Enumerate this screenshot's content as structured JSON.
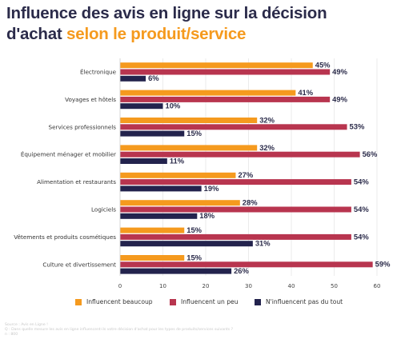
{
  "title": {
    "part1": "Influence des avis en ligne sur la décision",
    "part2": "d'achat ",
    "accent": "selon le produit/service"
  },
  "colors": {
    "title": "#2b2b4a",
    "accent": "#f59a1e",
    "series": [
      "#f59a1e",
      "#b8354f",
      "#23234d"
    ]
  },
  "chart_data": {
    "type": "bar",
    "orientation": "horizontal",
    "categories": [
      "Électronique",
      "Voyages et hôtels",
      "Services professionnels",
      "Équipement ménager et mobilier",
      "Alimentation et restaurants",
      "Logiciels",
      "Vêtements et produits cosmétiques",
      "Culture et divertissement"
    ],
    "series": [
      {
        "name": "Influencent beaucoup",
        "values": [
          45,
          41,
          32,
          32,
          27,
          28,
          15,
          15
        ]
      },
      {
        "name": "Influencent un peu",
        "values": [
          49,
          49,
          53,
          56,
          54,
          54,
          54,
          59
        ]
      },
      {
        "name": "N'influencent pas du tout",
        "values": [
          6,
          10,
          15,
          11,
          19,
          18,
          31,
          26
        ]
      }
    ],
    "value_suffix": "%",
    "xlim": [
      0,
      60
    ],
    "xticks": [
      0,
      10,
      20,
      30,
      40,
      50,
      60
    ],
    "xtick_labels": [
      "0",
      "10",
      "20",
      "30",
      "40",
      "50",
      "60"
    ],
    "grid": "vertical",
    "legend_position": "bottom"
  },
  "footer": {
    "source": "Source : Avis en Ligne !",
    "question": "Q : Dans quelle mesure les avis en ligne influencent-ils votre décision d'achat pour les types de produits/services suivants ?",
    "sample": "n : 800"
  }
}
